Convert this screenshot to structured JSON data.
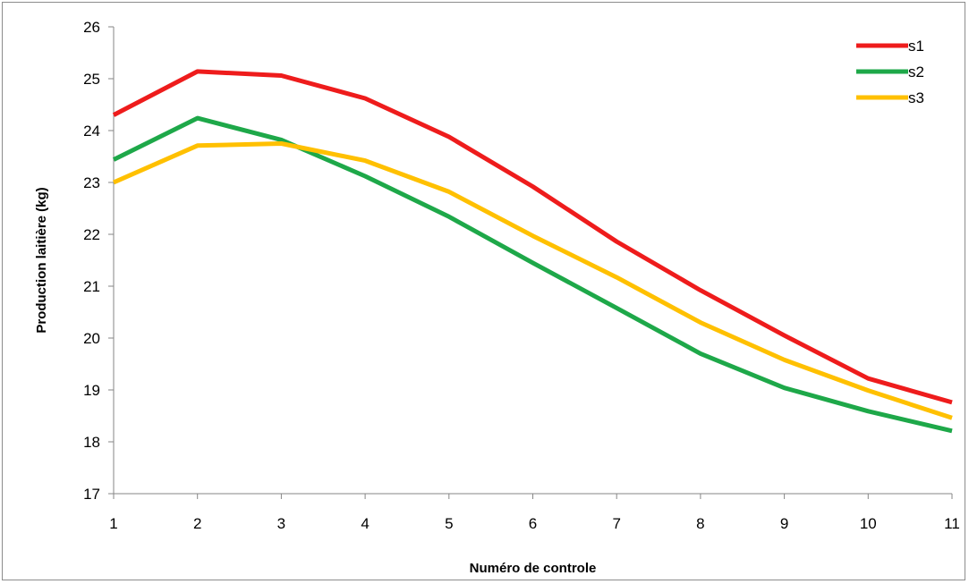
{
  "chart_data": {
    "type": "line",
    "title": "",
    "xlabel": "Numéro de controle",
    "ylabel": "Production laitière (kg)",
    "x": [
      1,
      2,
      3,
      4,
      5,
      6,
      7,
      8,
      9,
      10,
      11
    ],
    "xlim": [
      1,
      11
    ],
    "ylim": [
      17,
      26
    ],
    "yticks": [
      17,
      18,
      19,
      20,
      21,
      22,
      23,
      24,
      25,
      26
    ],
    "xticks": [
      1,
      2,
      3,
      4,
      5,
      6,
      7,
      8,
      9,
      10,
      11
    ],
    "grid": false,
    "legend_position": "top-right",
    "series": [
      {
        "name": "s1",
        "color": "#ee1c1c",
        "values": [
          24.3,
          25.14,
          25.06,
          24.62,
          23.88,
          22.92,
          21.86,
          20.92,
          20.05,
          19.22,
          18.76
        ]
      },
      {
        "name": "s2",
        "color": "#1ea849",
        "values": [
          23.44,
          24.24,
          23.82,
          23.12,
          22.34,
          21.45,
          20.58,
          19.7,
          19.04,
          18.59,
          18.21
        ]
      },
      {
        "name": "s3",
        "color": "#ffc000",
        "values": [
          23.0,
          23.71,
          23.75,
          23.42,
          22.82,
          21.97,
          21.17,
          20.3,
          19.58,
          18.99,
          18.46
        ]
      }
    ]
  }
}
